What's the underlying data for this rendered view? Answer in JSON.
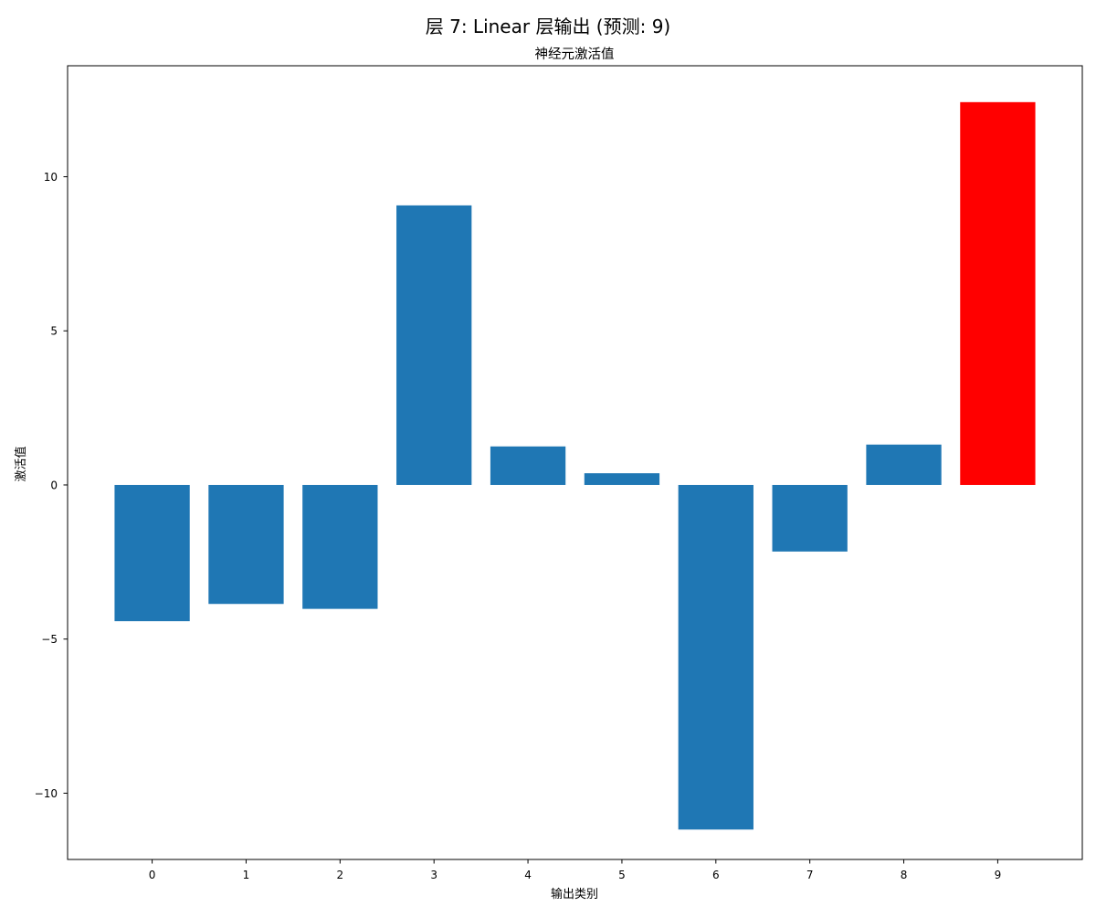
{
  "chart_data": {
    "type": "bar",
    "suptitle": "层 7: Linear 层输出 (预测: 9)",
    "title": "神经元激活值",
    "xlabel": "输出类别",
    "ylabel": "激活值",
    "categories": [
      "0",
      "1",
      "2",
      "3",
      "4",
      "5",
      "6",
      "7",
      "8",
      "9"
    ],
    "values": [
      -4.42,
      -3.86,
      -4.02,
      9.07,
      1.25,
      0.38,
      -11.18,
      -2.16,
      1.31,
      12.42
    ],
    "highlight_index": 9,
    "ylim": [
      -12.15,
      13.6
    ],
    "yticks": [
      -10,
      -5,
      0,
      5,
      10
    ],
    "yticklabels": [
      "−10",
      "−5",
      "0",
      "5",
      "10"
    ],
    "grid": false,
    "colors": {
      "bar": "#1f77b4",
      "highlight": "#ff0000",
      "axis": "#000000"
    }
  }
}
